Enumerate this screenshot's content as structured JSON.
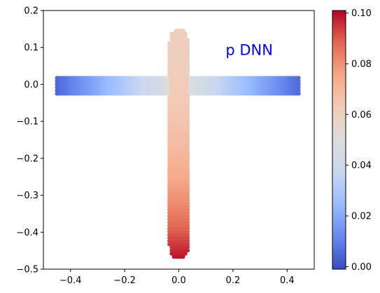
{
  "chart_data": {
    "type": "scatter",
    "title": "",
    "xlabel": "",
    "ylabel": "",
    "xlim": [
      -0.5,
      0.5
    ],
    "ylim": [
      -0.5,
      0.2
    ],
    "x_ticks": [
      -0.4,
      -0.2,
      0.0,
      0.2,
      0.4
    ],
    "x_tick_labels": [
      "−0.4",
      "−0.2",
      "0.0",
      "0.2",
      "0.4"
    ],
    "y_ticks": [
      0.2,
      0.1,
      0.0,
      -0.1,
      -0.2,
      -0.3,
      -0.4,
      -0.5
    ],
    "y_tick_labels": [
      "0.2",
      "0.1",
      "0.0",
      "−0.1",
      "−0.2",
      "−0.3",
      "−0.4",
      "−0.5"
    ],
    "annotation": {
      "text": "p DNN",
      "x": 0.26,
      "y": 0.08,
      "color": "#0000ff"
    },
    "colormap": "coolwarm",
    "colormap_stops": [
      "#3b4cc0",
      "#6788ee",
      "#9abbff",
      "#c9d7f0",
      "#dddddd",
      "#f2cbb7",
      "#f7a889",
      "#e26952",
      "#b40426"
    ],
    "colorbar": {
      "range": [
        -0.001,
        0.101
      ],
      "ticks": [
        0.0,
        0.02,
        0.04,
        0.06,
        0.08,
        0.1
      ],
      "tick_labels": [
        "0.00",
        "0.02",
        "0.04",
        "0.06",
        "0.08",
        "0.10"
      ]
    },
    "shape": {
      "horizontal_bar": {
        "x": [
          -0.45,
          0.45
        ],
        "y": [
          -0.025,
          0.025
        ]
      },
      "vertical_bar": {
        "x": [
          -0.035,
          0.035
        ],
        "y": [
          -0.475,
          0.15
        ]
      },
      "horizontal_value_ends": 0.005,
      "horizontal_value_center": 0.055,
      "vertical_value_top": 0.06,
      "vertical_value_bottom": 0.1,
      "grid_step": 0.0085
    }
  }
}
